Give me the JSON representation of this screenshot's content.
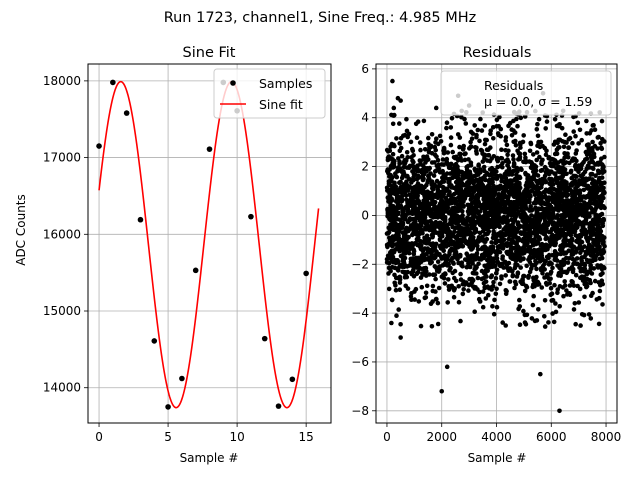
{
  "figure": {
    "suptitle": "Run 1723, channel1, Sine Freq.: 4.985 MHz"
  },
  "chart_data": [
    {
      "type": "scatter",
      "title": "Sine Fit",
      "xlabel": "Sample #",
      "ylabel": "ADC Counts",
      "xlim": [
        -0.8,
        16.8
      ],
      "ylim": [
        13540,
        18220
      ],
      "xticks": [
        0,
        5,
        10,
        15
      ],
      "yticks": [
        14000,
        15000,
        16000,
        17000,
        18000
      ],
      "grid": true,
      "legend": "top-right",
      "colors": {
        "samples": "#000000",
        "fit": "#ff0000"
      },
      "series": [
        {
          "name": "Samples",
          "kind": "points",
          "x": [
            0,
            1,
            2,
            3,
            4,
            5,
            6,
            7,
            8,
            9,
            10,
            11,
            12,
            13,
            14,
            15
          ],
          "y": [
            17150,
            17980,
            17580,
            16190,
            14610,
            13750,
            14120,
            15530,
            17110,
            17980,
            17610,
            16230,
            14640,
            13760,
            14110,
            15490
          ]
        },
        {
          "name": "Sine fit",
          "kind": "line",
          "function": "sine",
          "offset": 15865,
          "amplitude": 2125,
          "period": 8.024,
          "phase": 0.34,
          "x_range": [
            0,
            15.9
          ]
        }
      ]
    },
    {
      "type": "scatter",
      "title": "Residuals",
      "xlabel": "Sample #",
      "ylabel": "",
      "xlim": [
        -400,
        8400
      ],
      "ylim": [
        -8.5,
        6.2
      ],
      "xticks": [
        0,
        2000,
        4000,
        6000,
        8000
      ],
      "yticks": [
        -8,
        -6,
        -4,
        -2,
        0,
        2,
        4,
        6
      ],
      "grid": true,
      "legend": "top-right",
      "legend_text": [
        "Residuals",
        "μ = 0.0, σ = 1.59"
      ],
      "color": "#000000",
      "stats": {
        "mean": 0.0,
        "sigma": 1.59,
        "x_range": [
          0,
          7950
        ]
      },
      "series": [
        {
          "name": "Residuals",
          "kind": "points",
          "outliers": {
            "x": [
              200,
              250,
              400,
              500,
              2000,
              2200,
              2600,
              5600,
              6300,
              5700,
              3000,
              1800,
              500
            ],
            "y": [
              5.5,
              4.4,
              4.8,
              4.7,
              -7.2,
              -6.2,
              4.9,
              -6.5,
              -8.0,
              5.0,
              4.5,
              4.4,
              -5.0
            ]
          }
        }
      ]
    }
  ]
}
